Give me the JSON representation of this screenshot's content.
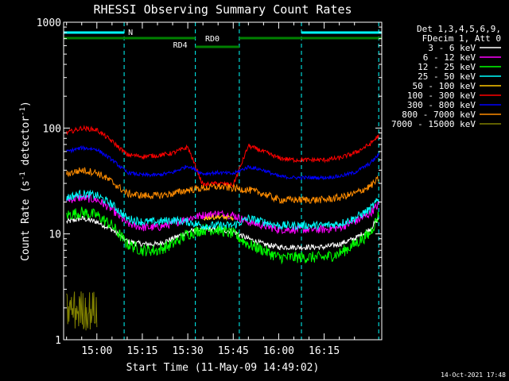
{
  "chart_data": {
    "type": "line",
    "title": "RHESSI Observing Summary Count Rates",
    "xlabel": "Start Time (11-May-09 14:49:02)",
    "ylabel_parts": [
      "Count Rate (s",
      "-1",
      " detector",
      "-1",
      ")"
    ],
    "yscale": "log",
    "ylim": [
      1,
      1000
    ],
    "y_ticks": [
      {
        "value": 1,
        "label": "1"
      },
      {
        "value": 10,
        "label": "10"
      },
      {
        "value": 100,
        "label": "100"
      },
      {
        "value": 1000,
        "label": "1000"
      }
    ],
    "xlim": [
      "14:49:02",
      "16:34:00"
    ],
    "x_ticks": [
      "15:00",
      "15:15",
      "15:30",
      "15:45",
      "16:00",
      "16:15"
    ],
    "legend_position": "right",
    "legend_title": [
      "Det 1,3,4,5,6,9,",
      "FDecim 1, Att 0"
    ],
    "timestamp": "14-Oct-2021 17:48",
    "annotations": {
      "night_label": "N",
      "night_intervals": [
        [
          "14:49:02",
          "15:09:00"
        ],
        [
          "16:07:30",
          "16:34:00"
        ]
      ],
      "rd0_label": "RD0",
      "rd0_intervals": [
        [
          "14:49:02",
          "15:32:30"
        ],
        [
          "15:47:00",
          "16:34:00"
        ]
      ],
      "rd4_label": "RD4",
      "rd4_intervals": [
        [
          "15:32:30",
          "15:47:00"
        ]
      ],
      "saa_markers": [
        "14:49:02",
        "15:09:00",
        "15:32:30",
        "15:47:00",
        "16:07:30",
        "16:33:00"
      ]
    },
    "x": [
      "14:50",
      "14:55",
      "15:00",
      "15:05",
      "15:10",
      "15:15",
      "15:20",
      "15:25",
      "15:30",
      "15:35",
      "15:40",
      "15:45",
      "15:50",
      "15:55",
      "16:00",
      "16:05",
      "16:10",
      "16:15",
      "16:20",
      "16:25",
      "16:30",
      "16:33"
    ],
    "series": [
      {
        "name": "3 - 6 keV",
        "color": "#ffffff",
        "values": [
          13,
          14,
          13,
          11,
          8.5,
          8,
          8,
          9,
          10.5,
          11,
          11,
          10.5,
          9,
          8,
          7.5,
          7.5,
          7.5,
          7.5,
          8,
          9,
          11,
          14
        ]
      },
      {
        "name": "6 - 12 keV",
        "color": "#ff00ff",
        "values": [
          21,
          22,
          21,
          17,
          12.5,
          11.5,
          11.5,
          12.5,
          14,
          15,
          15.5,
          15,
          13,
          12,
          11,
          11,
          11,
          11,
          11.5,
          13,
          15.5,
          19
        ]
      },
      {
        "name": "12 - 25 keV",
        "color": "#00ff00",
        "values": [
          15,
          16,
          15,
          12,
          8,
          7,
          7,
          8,
          10,
          11,
          11,
          10,
          8,
          7,
          6,
          6,
          6,
          6,
          6.5,
          8,
          10,
          15
        ]
      },
      {
        "name": "25 - 50 keV",
        "color": "#00ffff",
        "values": [
          22,
          24,
          23,
          19,
          14,
          13,
          13,
          13.5,
          13,
          12,
          12,
          12,
          14,
          13,
          12,
          12,
          12,
          12,
          12.5,
          14,
          17,
          21
        ]
      },
      {
        "name": "50 - 100 keV",
        "color": "#ffc800",
        "values": [
          null,
          null,
          null,
          null,
          null,
          null,
          null,
          null,
          null,
          14,
          14.5,
          14,
          null,
          null,
          null,
          null,
          null,
          null,
          null,
          null,
          null,
          null
        ]
      },
      {
        "name": "100 - 300 keV",
        "color": "#ff0000",
        "values": [
          90,
          100,
          96,
          75,
          56,
          54,
          55,
          58,
          66,
          29,
          30,
          29,
          68,
          60,
          52,
          50,
          50,
          50,
          52,
          58,
          70,
          85
        ]
      },
      {
        "name": "300 - 800 keV",
        "color": "#0000ff",
        "values": [
          60,
          65,
          63,
          50,
          38,
          36,
          36,
          38,
          44,
          37,
          38,
          37,
          43,
          40,
          35,
          34,
          34,
          34,
          35,
          38,
          46,
          56
        ]
      },
      {
        "name": "800 - 7000 keV",
        "color": "#ff8c00",
        "values": [
          37,
          40,
          38,
          31,
          24,
          23,
          23,
          24,
          26,
          27,
          28,
          27,
          26,
          24,
          21,
          21,
          21,
          21,
          22,
          24,
          28,
          33
        ]
      },
      {
        "name": "7000 - 15000 keV",
        "color": "#808000",
        "values": [
          1.9,
          1.9,
          1.9,
          null,
          null,
          null,
          null,
          null,
          null,
          null,
          null,
          null,
          null,
          null,
          null,
          null,
          null,
          null,
          null,
          null,
          null,
          null
        ]
      }
    ]
  }
}
